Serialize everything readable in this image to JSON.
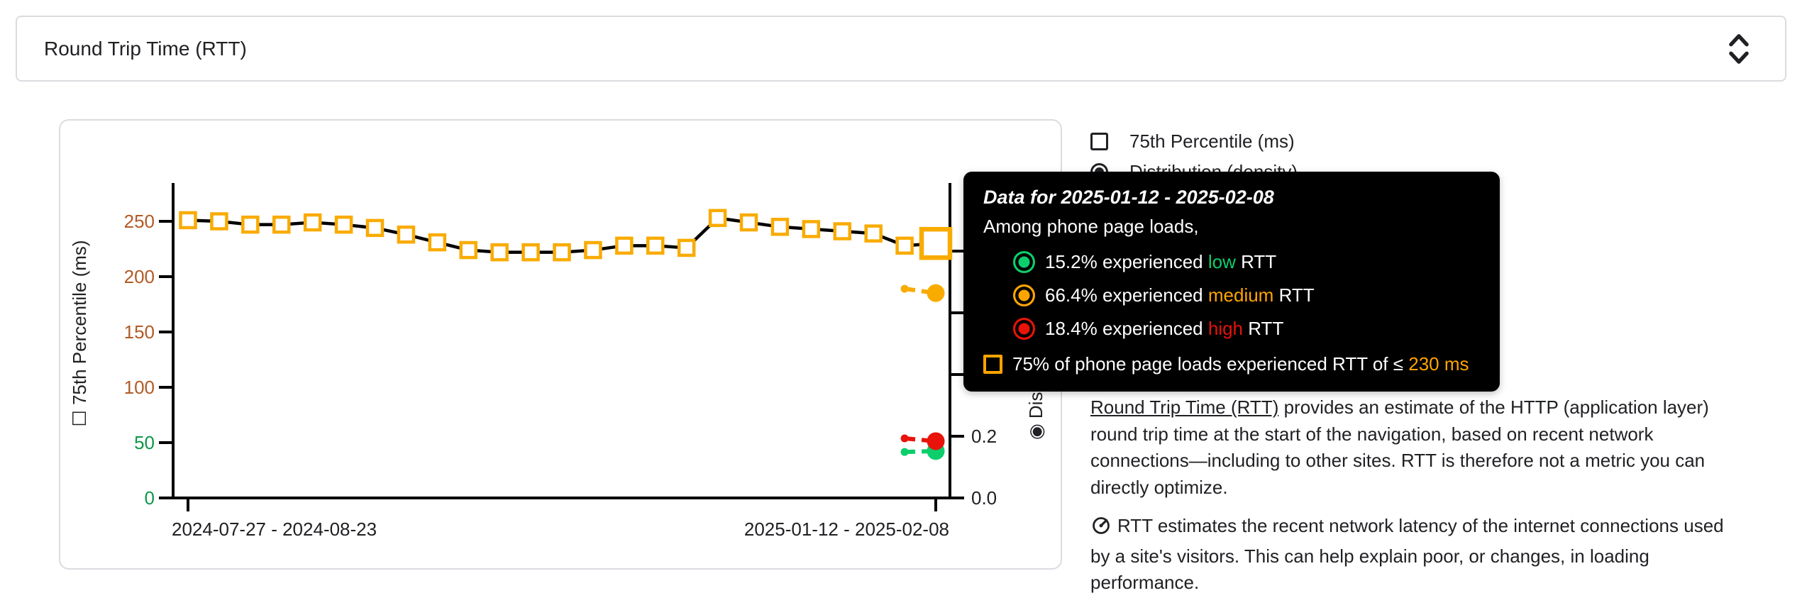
{
  "header": {
    "selected_metric": "Round Trip Time (RTT)",
    "dropdown_icon": "unfold-more-icon"
  },
  "legend": {
    "percentile": {
      "label": "75th Percentile (ms)",
      "checked": false
    },
    "distribution": {
      "label": "Distribution (density)",
      "selected": true
    }
  },
  "tooltip": {
    "title": "Data for 2025-01-12 - 2025-02-08",
    "subtitle": "Among phone page loads,",
    "rows": [
      {
        "pct": "15.2%",
        "mid": "experienced",
        "level": "low",
        "suffix": "RTT",
        "color": "#0cce6b"
      },
      {
        "pct": "66.4%",
        "mid": "experienced",
        "level": "medium",
        "suffix": "RTT",
        "color": "#ffa400"
      },
      {
        "pct": "18.4%",
        "mid": "experienced",
        "level": "high",
        "suffix": "RTT",
        "color": "#e8130a"
      }
    ],
    "p75": {
      "prefix": "75% of phone page loads experienced RTT of ≤",
      "value": "230 ms",
      "accent_color": "#ffa400"
    }
  },
  "chart_data": {
    "type": "line",
    "title": "",
    "x_tick_labels": [
      "2024-07-27 - 2024-08-23",
      "2025-01-12 - 2025-02-08"
    ],
    "y_left_axis": {
      "title": "75th Percentile (ms)",
      "range": [
        0,
        270
      ],
      "ticks": [
        {
          "label": "0",
          "value": 0,
          "color": "#0f9648"
        },
        {
          "label": "50",
          "value": 50,
          "color": "#0f9648"
        },
        {
          "label": "100",
          "value": 100,
          "color": "#b25a25"
        },
        {
          "label": "150",
          "value": 150,
          "color": "#b25a25"
        },
        {
          "label": "200",
          "value": 200,
          "color": "#b25a25"
        },
        {
          "label": "250",
          "value": 250,
          "color": "#b25a25"
        }
      ]
    },
    "y_right_axis": {
      "title": "Distribution (density)",
      "range": [
        0,
        1
      ],
      "visible_tick_labels": [
        {
          "label": "0.0",
          "value": 0
        },
        {
          "label": "0.2",
          "value": 0.2
        }
      ]
    },
    "series": [
      {
        "name": "75th Percentile (ms)",
        "line_color": "#000000",
        "marker_color": "#f9ab00",
        "values_ms": [
          251,
          250,
          247,
          247,
          249,
          247,
          244,
          238,
          231,
          224,
          222,
          222,
          222,
          224,
          228,
          228,
          226,
          253,
          249,
          245,
          243,
          241,
          239,
          228,
          230
        ],
        "highlighted_last_point": {
          "value_ms": 230,
          "period": "2025-01-12 - 2025-02-08"
        }
      }
    ],
    "density_series": [
      {
        "name": "low",
        "color": "#0cce6b",
        "prev": 0.149,
        "current": 0.152
      },
      {
        "name": "medium",
        "color": "#f9ab00",
        "prev": 0.678,
        "current": 0.664
      },
      {
        "name": "high",
        "color": "#e8130a",
        "prev": 0.193,
        "current": 0.184
      }
    ]
  },
  "description": {
    "p1_link_text": "Round Trip Time (RTT)",
    "p1_rest": " provides an estimate of the HTTP (application layer) round trip time at the start of the navigation, based on recent network connections—including to other sites. RTT is therefore not a metric you can directly optimize.",
    "p2_icon": "gauge-icon",
    "p2_text": "RTT estimates the recent network latency of the internet connections used by a site's visitors. This can help explain poor, or changes, in loading performance."
  },
  "glyphs": {
    "unchecked_box": "☐",
    "selected_radio": "◉"
  }
}
